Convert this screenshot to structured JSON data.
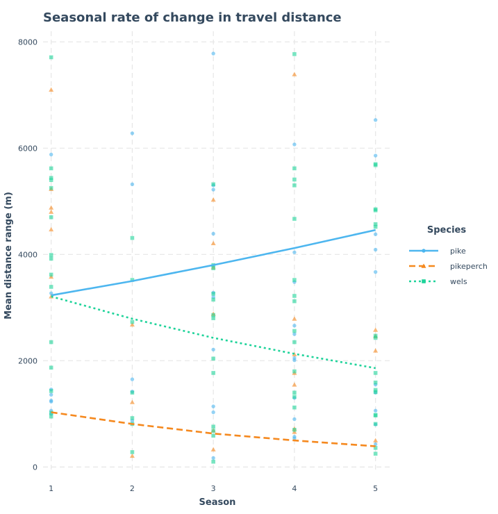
{
  "chart_data": {
    "type": "scatter",
    "title": "Seasonal rate of change in travel distance",
    "xlabel": "Season",
    "ylabel": "Mean distance range (m)",
    "xlim": [
      0.9,
      5.2
    ],
    "ylim": [
      -100,
      8200
    ],
    "x_ticks": [
      1,
      2,
      3,
      4,
      5
    ],
    "y_ticks": [
      0,
      2000,
      4000,
      6000,
      8000
    ],
    "grid": true,
    "legend_title": "Species",
    "legend_position": "right",
    "series": [
      {
        "name": "pike",
        "color": "#4db6ef",
        "marker": "circle",
        "line_style": "solid",
        "points": [
          [
            1,
            5880
          ],
          [
            1,
            3270
          ],
          [
            1,
            1460
          ],
          [
            1,
            1360
          ],
          [
            1,
            1250
          ],
          [
            1,
            1230
          ],
          [
            1,
            1060
          ],
          [
            1,
            1000
          ],
          [
            2,
            6280
          ],
          [
            2,
            5320
          ],
          [
            2,
            1650
          ],
          [
            2,
            1420
          ],
          [
            2,
            870
          ],
          [
            3,
            7780
          ],
          [
            3,
            5300
          ],
          [
            3,
            5220
          ],
          [
            3,
            4390
          ],
          [
            3,
            3280
          ],
          [
            3,
            3200
          ],
          [
            3,
            2210
          ],
          [
            3,
            1140
          ],
          [
            3,
            1030
          ],
          [
            3,
            170
          ],
          [
            4,
            6070
          ],
          [
            4,
            4040
          ],
          [
            4,
            3480
          ],
          [
            4,
            2660
          ],
          [
            4,
            2500
          ],
          [
            4,
            2050
          ],
          [
            4,
            2010
          ],
          [
            4,
            1300
          ],
          [
            4,
            900
          ],
          [
            4,
            570
          ],
          [
            4,
            540
          ],
          [
            5,
            6530
          ],
          [
            5,
            5860
          ],
          [
            5,
            4380
          ],
          [
            5,
            4090
          ],
          [
            5,
            3670
          ],
          [
            5,
            1550
          ],
          [
            5,
            1400
          ],
          [
            5,
            1060
          ],
          [
            5,
            800
          ],
          [
            5,
            430
          ]
        ],
        "trend": [
          [
            1,
            3230
          ],
          [
            2,
            3500
          ],
          [
            3,
            3800
          ],
          [
            4,
            4120
          ],
          [
            5,
            4460
          ]
        ]
      },
      {
        "name": "pikeperch",
        "color": "#f5891f",
        "marker": "triangle",
        "line_style": "dashed",
        "points": [
          [
            1,
            7100
          ],
          [
            1,
            5230
          ],
          [
            1,
            4880
          ],
          [
            1,
            4800
          ],
          [
            1,
            4470
          ],
          [
            1,
            3580
          ],
          [
            1,
            3210
          ],
          [
            2,
            2680
          ],
          [
            2,
            1220
          ],
          [
            2,
            210
          ],
          [
            3,
            5030
          ],
          [
            3,
            4210
          ],
          [
            3,
            3760
          ],
          [
            3,
            2880
          ],
          [
            3,
            690
          ],
          [
            3,
            330
          ],
          [
            4,
            7390
          ],
          [
            4,
            2790
          ],
          [
            4,
            2120
          ],
          [
            4,
            1770
          ],
          [
            4,
            1550
          ],
          [
            4,
            720
          ],
          [
            4,
            660
          ],
          [
            5,
            2580
          ],
          [
            5,
            2460
          ],
          [
            5,
            2190
          ],
          [
            5,
            500
          ]
        ],
        "trend": [
          [
            1,
            1030
          ],
          [
            2,
            810
          ],
          [
            3,
            630
          ],
          [
            4,
            500
          ],
          [
            5,
            390
          ]
        ]
      },
      {
        "name": "wels",
        "color": "#1fd39a",
        "marker": "square",
        "line_style": "dotted",
        "points": [
          [
            1,
            7710
          ],
          [
            1,
            5620
          ],
          [
            1,
            5440
          ],
          [
            1,
            5400
          ],
          [
            1,
            5250
          ],
          [
            1,
            4700
          ],
          [
            1,
            3990
          ],
          [
            1,
            3920
          ],
          [
            1,
            3620
          ],
          [
            1,
            3390
          ],
          [
            1,
            2350
          ],
          [
            1,
            1870
          ],
          [
            1,
            1430
          ],
          [
            1,
            1020
          ],
          [
            1,
            950
          ],
          [
            2,
            4310
          ],
          [
            2,
            3520
          ],
          [
            2,
            2730
          ],
          [
            2,
            1400
          ],
          [
            2,
            920
          ],
          [
            2,
            810
          ],
          [
            2,
            280
          ],
          [
            3,
            5320
          ],
          [
            3,
            3800
          ],
          [
            3,
            3740
          ],
          [
            3,
            3260
          ],
          [
            3,
            3150
          ],
          [
            3,
            2860
          ],
          [
            3,
            2800
          ],
          [
            3,
            2040
          ],
          [
            3,
            1770
          ],
          [
            3,
            760
          ],
          [
            3,
            680
          ],
          [
            3,
            590
          ],
          [
            3,
            100
          ],
          [
            4,
            7770
          ],
          [
            4,
            5620
          ],
          [
            4,
            5410
          ],
          [
            4,
            5300
          ],
          [
            4,
            4670
          ],
          [
            4,
            3520
          ],
          [
            4,
            3220
          ],
          [
            4,
            3120
          ],
          [
            4,
            2560
          ],
          [
            4,
            2350
          ],
          [
            4,
            1800
          ],
          [
            4,
            1400
          ],
          [
            4,
            1320
          ],
          [
            4,
            1120
          ],
          [
            4,
            700
          ],
          [
            5,
            5700
          ],
          [
            5,
            5680
          ],
          [
            5,
            4850
          ],
          [
            5,
            4830
          ],
          [
            5,
            4570
          ],
          [
            5,
            4520
          ],
          [
            5,
            2470
          ],
          [
            5,
            2430
          ],
          [
            5,
            1770
          ],
          [
            5,
            1590
          ],
          [
            5,
            1450
          ],
          [
            5,
            1410
          ],
          [
            5,
            980
          ],
          [
            5,
            970
          ],
          [
            5,
            810
          ],
          [
            5,
            360
          ],
          [
            5,
            250
          ]
        ],
        "trend": [
          [
            1,
            3210
          ],
          [
            2,
            2790
          ],
          [
            3,
            2430
          ],
          [
            4,
            2130
          ],
          [
            5,
            1860
          ]
        ]
      }
    ]
  }
}
